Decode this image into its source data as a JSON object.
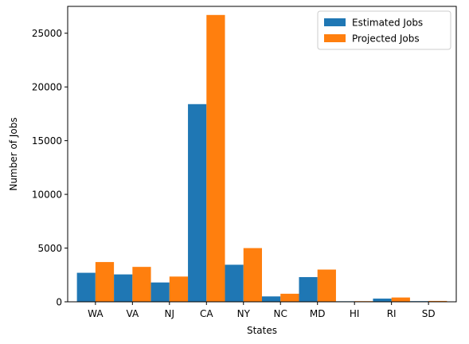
{
  "chart_data": {
    "type": "bar",
    "xlabel": "States",
    "ylabel": "Number of Jobs",
    "categories": [
      "WA",
      "VA",
      "NJ",
      "CA",
      "NY",
      "NC",
      "MD",
      "HI",
      "RI",
      "SD"
    ],
    "series": [
      {
        "name": "Estimated Jobs",
        "color": "#1f77b4",
        "values": [
          2700,
          2550,
          1800,
          18400,
          3450,
          500,
          2300,
          50,
          300,
          60
        ]
      },
      {
        "name": "Projected Jobs",
        "color": "#ff7f0e",
        "values": [
          3700,
          3250,
          2350,
          26700,
          5000,
          750,
          3000,
          60,
          400,
          80
        ]
      }
    ],
    "ylim": [
      0,
      27500
    ],
    "yticks": [
      0,
      5000,
      10000,
      15000,
      20000,
      25000
    ],
    "grid": false,
    "legend_position": "upper right"
  }
}
